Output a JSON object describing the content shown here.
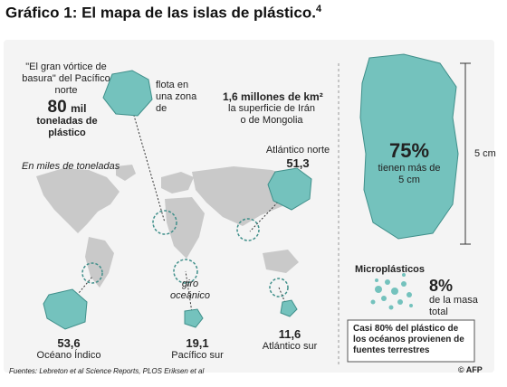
{
  "title": {
    "text": "Gráfico 1: El mapa de las islas de plástico.",
    "sup": "4"
  },
  "north_pacific": {
    "name": "\"El gran vórtice de basura\" del Pacífico norte",
    "amount": "80",
    "amount_unit": "mil",
    "amount_desc": "toneladas de plástico",
    "floats_label": "flota en una zona de",
    "area_value": "1,6 millones de km²",
    "area_compare": "la superficie de Irán o de Mongolia"
  },
  "units_note": "En miles de toneladas",
  "north_atlantic": {
    "name": "Atlántico norte",
    "value": "51,3"
  },
  "oceanic_gyre": "giro oceánico",
  "indian_ocean": {
    "name": "Océano Índico",
    "value": "53,6"
  },
  "south_pacific": {
    "name": "Pacífico sur",
    "value": "19,1"
  },
  "south_atlantic": {
    "name": "Atlántico sur",
    "value": "11,6"
  },
  "large_pieces": {
    "percent": "75%",
    "desc": "tienen más de 5 cm",
    "scale": "5 cm"
  },
  "microplastics": {
    "title": "Microplásticos",
    "percent": "8%",
    "desc": "de la masa total"
  },
  "land_note": "Casi 80% del plástico de los océanos provienen de fuentes terrestres",
  "sources": "Fuentes: Lebreton et al Science Reports, PLOS Eriksen et al",
  "logo": "© AFP",
  "colors": {
    "teal": "#74c2bd",
    "teal_dark": "#3f8f8a",
    "map": "#c8c8c8",
    "panel": "#f4f4f4"
  }
}
